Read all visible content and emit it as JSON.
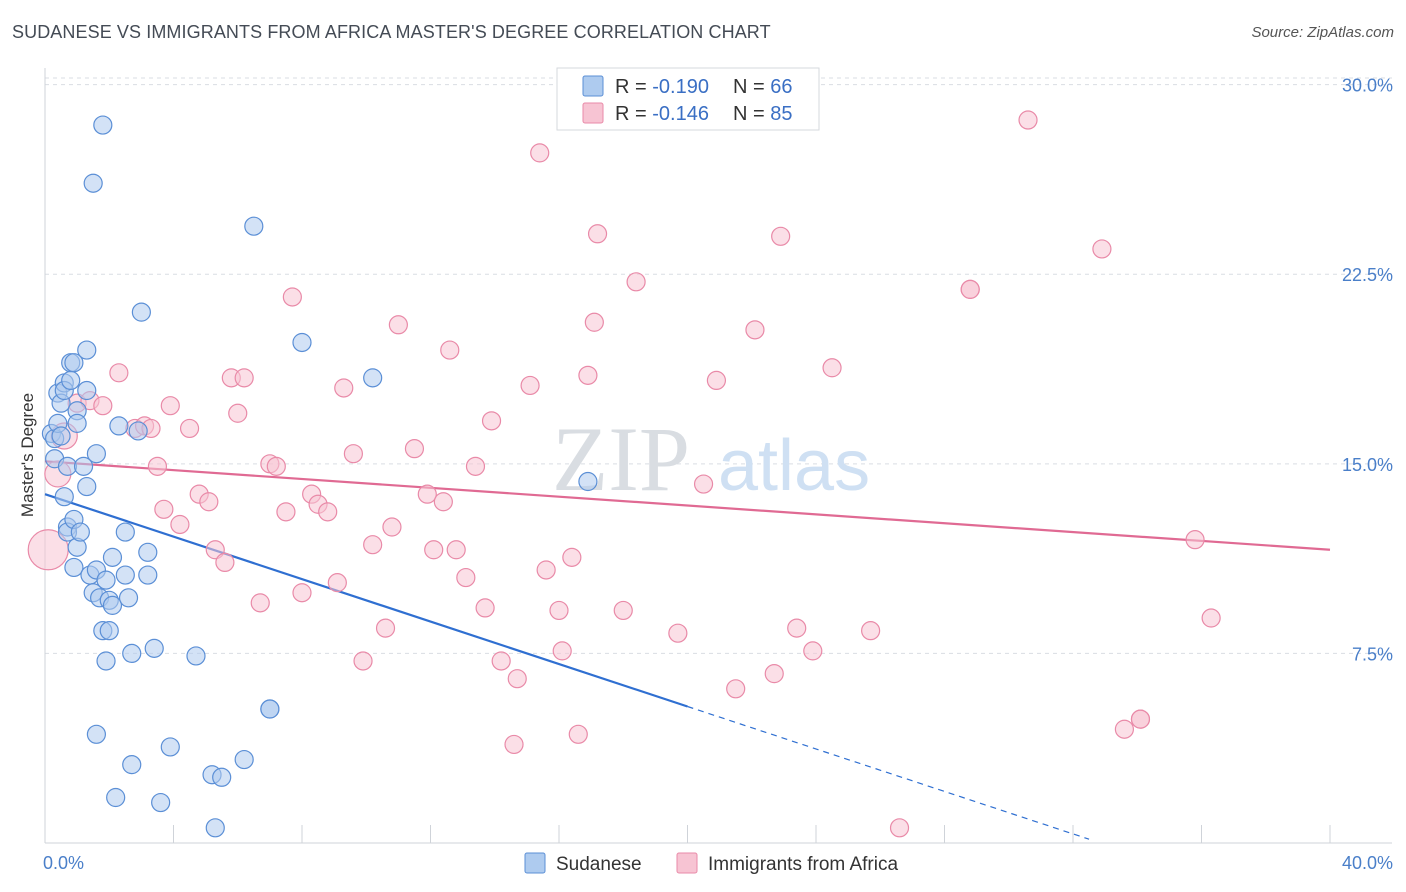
{
  "title": "SUDANESE VS IMMIGRANTS FROM AFRICA MASTER'S DEGREE CORRELATION CHART",
  "source": "Source: ZipAtlas.com",
  "watermark": {
    "zip": "ZIP",
    "atlas": "atlas"
  },
  "colors": {
    "sudanese_fill": "#aecbef",
    "sudanese_stroke": "#5b8fd6",
    "sudanese_line": "#2f6fd1",
    "africa_fill": "#f7c4d3",
    "africa_stroke": "#e98aa8",
    "africa_line": "#e06a93",
    "grid": "#d9dde3",
    "tick_text": "#4a7fc9"
  },
  "chart_data": {
    "type": "scatter",
    "title": "SUDANESE VS IMMIGRANTS FROM AFRICA MASTER'S DEGREE CORRELATION CHART",
    "xlabel": "",
    "ylabel": "Master's Degree",
    "xlim": [
      0,
      40
    ],
    "ylim": [
      0,
      30.5
    ],
    "x_tick_labels": [
      "0.0%",
      "40.0%"
    ],
    "y_ticks": [
      7.5,
      15.0,
      22.5,
      30.0
    ],
    "y_tick_labels": [
      "7.5%",
      "15.0%",
      "22.5%",
      "30.0%"
    ],
    "grid": true,
    "legend_position": "top-center",
    "legend": [
      {
        "label": "R = ",
        "r": "-0.190",
        "n_label": "N = ",
        "n": "66"
      },
      {
        "label": "R = ",
        "r": "-0.146",
        "n_label": "N = ",
        "n": "85"
      }
    ],
    "series": [
      {
        "name": "Sudanese",
        "trend": {
          "x0": 0,
          "y0": 13.8,
          "x1": 20,
          "y1": 5.4,
          "dash_to_x": 32.5
        },
        "points": [
          [
            0.2,
            16.2
          ],
          [
            0.3,
            16.0
          ],
          [
            0.3,
            15.2
          ],
          [
            0.4,
            16.6
          ],
          [
            0.4,
            17.8
          ],
          [
            0.5,
            17.4
          ],
          [
            0.5,
            16.1
          ],
          [
            0.6,
            18.2
          ],
          [
            0.6,
            17.9
          ],
          [
            0.6,
            13.7
          ],
          [
            0.7,
            12.5
          ],
          [
            0.7,
            12.3
          ],
          [
            0.7,
            14.9
          ],
          [
            0.8,
            18.3
          ],
          [
            0.8,
            19.0
          ],
          [
            0.9,
            19.0
          ],
          [
            0.9,
            12.8
          ],
          [
            0.9,
            10.9
          ],
          [
            1.0,
            17.1
          ],
          [
            1.0,
            16.6
          ],
          [
            1.0,
            11.7
          ],
          [
            1.1,
            12.3
          ],
          [
            1.2,
            14.9
          ],
          [
            1.3,
            19.5
          ],
          [
            1.3,
            17.9
          ],
          [
            1.3,
            14.1
          ],
          [
            1.4,
            10.6
          ],
          [
            1.5,
            26.1
          ],
          [
            1.5,
            9.9
          ],
          [
            1.6,
            15.4
          ],
          [
            1.6,
            10.8
          ],
          [
            1.6,
            4.3
          ],
          [
            1.7,
            9.7
          ],
          [
            1.8,
            28.4
          ],
          [
            1.8,
            8.4
          ],
          [
            1.9,
            10.4
          ],
          [
            1.9,
            7.2
          ],
          [
            2.0,
            9.6
          ],
          [
            2.0,
            8.4
          ],
          [
            2.1,
            11.3
          ],
          [
            2.1,
            9.4
          ],
          [
            2.2,
            1.8
          ],
          [
            2.3,
            16.5
          ],
          [
            2.5,
            12.3
          ],
          [
            2.5,
            10.6
          ],
          [
            2.6,
            9.7
          ],
          [
            2.7,
            3.1
          ],
          [
            2.7,
            7.5
          ],
          [
            2.9,
            16.3
          ],
          [
            3.0,
            21.0
          ],
          [
            3.2,
            11.5
          ],
          [
            3.2,
            10.6
          ],
          [
            3.4,
            7.7
          ],
          [
            3.6,
            1.6
          ],
          [
            3.9,
            3.8
          ],
          [
            4.7,
            7.4
          ],
          [
            5.2,
            2.7
          ],
          [
            5.3,
            0.6
          ],
          [
            5.5,
            2.6
          ],
          [
            6.2,
            3.3
          ],
          [
            6.5,
            24.4
          ],
          [
            7.0,
            5.3
          ],
          [
            8.0,
            19.8
          ],
          [
            10.2,
            18.4
          ],
          [
            16.9,
            14.3
          ],
          [
            7.0,
            5.3
          ]
        ]
      },
      {
        "name": "Immigrants from Africa",
        "trend": {
          "x0": 0,
          "y0": 15.1,
          "x1": 40,
          "y1": 11.6
        },
        "points": [
          [
            0.1,
            11.6
          ],
          [
            0.4,
            14.6
          ],
          [
            0.6,
            16.1
          ],
          [
            1.0,
            17.4
          ],
          [
            1.4,
            17.5
          ],
          [
            1.8,
            17.3
          ],
          [
            2.3,
            18.6
          ],
          [
            2.8,
            16.4
          ],
          [
            3.1,
            16.5
          ],
          [
            3.3,
            16.4
          ],
          [
            3.5,
            14.9
          ],
          [
            3.7,
            13.2
          ],
          [
            3.9,
            17.3
          ],
          [
            4.2,
            12.6
          ],
          [
            4.5,
            16.4
          ],
          [
            4.8,
            13.8
          ],
          [
            5.1,
            13.5
          ],
          [
            5.3,
            11.6
          ],
          [
            5.6,
            11.1
          ],
          [
            5.8,
            18.4
          ],
          [
            6.0,
            17.0
          ],
          [
            6.2,
            18.4
          ],
          [
            6.7,
            9.5
          ],
          [
            7.0,
            15.0
          ],
          [
            7.2,
            14.9
          ],
          [
            7.5,
            13.1
          ],
          [
            7.7,
            21.6
          ],
          [
            8.0,
            9.9
          ],
          [
            8.3,
            13.8
          ],
          [
            8.5,
            13.4
          ],
          [
            8.8,
            13.1
          ],
          [
            9.1,
            10.3
          ],
          [
            9.3,
            18.0
          ],
          [
            9.6,
            15.4
          ],
          [
            9.9,
            7.2
          ],
          [
            10.2,
            11.8
          ],
          [
            10.6,
            8.5
          ],
          [
            10.8,
            12.5
          ],
          [
            11.0,
            20.5
          ],
          [
            11.5,
            15.6
          ],
          [
            11.9,
            13.8
          ],
          [
            12.1,
            11.6
          ],
          [
            12.4,
            13.5
          ],
          [
            12.6,
            19.5
          ],
          [
            12.8,
            11.6
          ],
          [
            13.1,
            10.5
          ],
          [
            13.4,
            14.9
          ],
          [
            13.7,
            9.3
          ],
          [
            13.9,
            16.7
          ],
          [
            14.2,
            7.2
          ],
          [
            14.6,
            3.9
          ],
          [
            14.7,
            6.5
          ],
          [
            15.1,
            18.1
          ],
          [
            15.4,
            27.3
          ],
          [
            15.6,
            10.8
          ],
          [
            16.0,
            9.2
          ],
          [
            16.1,
            7.6
          ],
          [
            16.4,
            11.3
          ],
          [
            16.6,
            4.3
          ],
          [
            16.9,
            18.5
          ],
          [
            17.1,
            20.6
          ],
          [
            17.2,
            24.1
          ],
          [
            18.0,
            9.2
          ],
          [
            18.4,
            22.2
          ],
          [
            19.7,
            8.3
          ],
          [
            20.5,
            14.2
          ],
          [
            20.9,
            18.3
          ],
          [
            21.5,
            6.1
          ],
          [
            22.1,
            20.3
          ],
          [
            22.7,
            6.7
          ],
          [
            22.9,
            24.0
          ],
          [
            23.4,
            8.5
          ],
          [
            23.9,
            7.6
          ],
          [
            24.5,
            18.8
          ],
          [
            25.7,
            8.4
          ],
          [
            26.6,
            0.6
          ],
          [
            28.8,
            21.9
          ],
          [
            30.6,
            28.6
          ],
          [
            32.9,
            23.5
          ],
          [
            33.6,
            4.5
          ],
          [
            34.1,
            4.9
          ],
          [
            35.8,
            12.0
          ],
          [
            36.3,
            8.9
          ],
          [
            34.1,
            4.9
          ],
          [
            28.8,
            21.9
          ]
        ]
      }
    ]
  }
}
